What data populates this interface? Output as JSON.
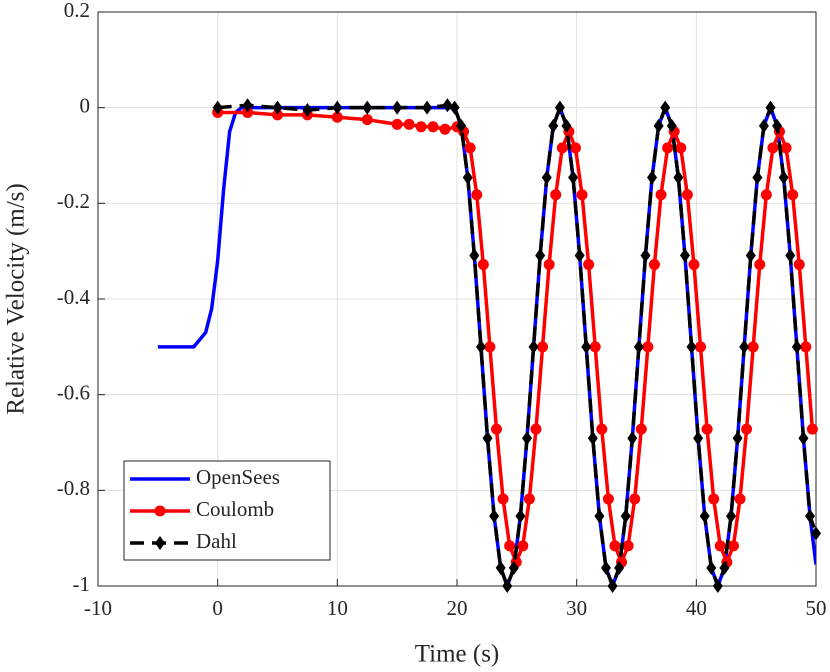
{
  "chart_data": {
    "type": "line",
    "xlabel": "Time (s)",
    "ylabel": "Relative Velocity (m/s)",
    "xlim": [
      -10,
      50
    ],
    "xticks": [
      -10,
      0,
      10,
      20,
      30,
      40,
      50
    ],
    "ylim": [
      -1,
      0.2
    ],
    "yticks": [
      0.2,
      0,
      -0.2,
      -0.4,
      -0.6,
      -0.8,
      -1
    ],
    "grid": true,
    "legend": "lower left",
    "series": [
      {
        "name": "OpenSees",
        "color": "#0000ff",
        "marker": "none",
        "dash": "solid",
        "x": [
          -5,
          -2,
          -1,
          -0.5,
          0,
          0.5,
          1,
          1.5,
          2,
          19.8,
          20.35,
          20.9,
          21.45,
          22,
          22.55,
          23.1,
          23.65,
          24.2,
          24.75,
          25.3,
          25.85,
          26.4,
          26.95,
          27.5,
          28.05,
          28.6,
          29.15,
          29.7,
          30.25,
          30.8,
          31.35,
          31.9,
          32.45,
          33,
          33.55,
          34.1,
          34.65,
          35.2,
          35.75,
          36.3,
          36.85,
          37.4,
          37.95,
          38.5,
          39.05,
          39.6,
          40.15,
          40.7,
          41.25,
          41.8,
          42.35,
          42.9,
          43.45,
          44,
          44.55,
          45.1,
          45.65,
          46.2,
          46.75,
          47.3,
          47.85,
          48.4,
          48.95,
          49.5,
          50
        ],
        "values": [
          -0.5,
          -0.5,
          -0.47,
          -0.42,
          -0.32,
          -0.17,
          -0.05,
          -0.01,
          0,
          0,
          -0.038,
          -0.146,
          -0.309,
          -0.5,
          -0.691,
          -0.854,
          -0.962,
          -1,
          -0.962,
          -0.854,
          -0.691,
          -0.5,
          -0.309,
          -0.146,
          -0.038,
          0,
          -0.038,
          -0.146,
          -0.309,
          -0.5,
          -0.691,
          -0.854,
          -0.962,
          -1,
          -0.962,
          -0.854,
          -0.691,
          -0.5,
          -0.309,
          -0.146,
          -0.038,
          0,
          -0.038,
          -0.146,
          -0.309,
          -0.5,
          -0.691,
          -0.854,
          -0.962,
          -1,
          -0.962,
          -0.854,
          -0.691,
          -0.5,
          -0.309,
          -0.146,
          -0.038,
          0,
          -0.038,
          -0.146,
          -0.309,
          -0.5,
          -0.691,
          -0.854,
          -0.955
        ]
      },
      {
        "name": "Coulomb",
        "color": "#ff0000",
        "marker": "circle",
        "dash": "solid",
        "x": [
          0,
          2.5,
          5,
          7.5,
          10,
          12.5,
          15,
          16,
          17,
          18,
          19,
          20,
          20.55,
          21.1,
          21.65,
          22.2,
          22.75,
          23.3,
          23.85,
          24.4,
          24.95,
          25.5,
          26.05,
          26.6,
          27.15,
          27.7,
          28.25,
          28.8,
          29.35,
          29.9,
          30.45,
          31,
          31.55,
          32.1,
          32.65,
          33.2,
          33.75,
          34.3,
          34.85,
          35.4,
          35.95,
          36.5,
          37.05,
          37.6,
          38.15,
          38.7,
          39.25,
          39.8,
          40.35,
          40.9,
          41.45,
          42,
          42.55,
          43.1,
          43.65,
          44.2,
          44.75,
          45.3,
          45.85,
          46.4,
          46.95,
          47.5,
          48.05,
          48.6,
          49.15,
          49.7
        ],
        "values": [
          -0.01,
          -0.01,
          -0.015,
          -0.015,
          -0.02,
          -0.025,
          -0.035,
          -0.035,
          -0.04,
          -0.04,
          -0.045,
          -0.04,
          -0.05,
          -0.084,
          -0.182,
          -0.328,
          -0.5,
          -0.672,
          -0.818,
          -0.916,
          -0.95,
          -0.916,
          -0.818,
          -0.672,
          -0.5,
          -0.328,
          -0.182,
          -0.084,
          -0.05,
          -0.084,
          -0.182,
          -0.328,
          -0.5,
          -0.672,
          -0.818,
          -0.916,
          -0.95,
          -0.916,
          -0.818,
          -0.672,
          -0.5,
          -0.328,
          -0.182,
          -0.084,
          -0.05,
          -0.084,
          -0.182,
          -0.328,
          -0.5,
          -0.672,
          -0.818,
          -0.916,
          -0.95,
          -0.916,
          -0.818,
          -0.672,
          -0.5,
          -0.328,
          -0.182,
          -0.084,
          -0.05,
          -0.084,
          -0.182,
          -0.328,
          -0.5,
          -0.672
        ]
      },
      {
        "name": "Dahl",
        "color": "#000000",
        "marker": "diamond",
        "dash": "dashed",
        "x": [
          0,
          2.5,
          5,
          7.5,
          10,
          12.5,
          15,
          17.5,
          19.2,
          19.8,
          20.35,
          20.9,
          21.45,
          22,
          22.55,
          23.1,
          23.65,
          24.2,
          24.75,
          25.3,
          25.85,
          26.4,
          26.95,
          27.5,
          28.05,
          28.6,
          29.15,
          29.7,
          30.25,
          30.8,
          31.35,
          31.9,
          32.45,
          33,
          33.55,
          34.1,
          34.65,
          35.2,
          35.75,
          36.3,
          36.85,
          37.4,
          37.95,
          38.5,
          39.05,
          39.6,
          40.15,
          40.7,
          41.25,
          41.8,
          42.35,
          42.9,
          43.45,
          44,
          44.55,
          45.1,
          45.65,
          46.2,
          46.75,
          47.3,
          47.85,
          48.4,
          48.95,
          49.5,
          50
        ],
        "values": [
          0,
          0.005,
          0,
          -0.005,
          0,
          0,
          0,
          0,
          0.005,
          0,
          -0.038,
          -0.146,
          -0.309,
          -0.5,
          -0.691,
          -0.854,
          -0.962,
          -1,
          -0.962,
          -0.854,
          -0.691,
          -0.5,
          -0.309,
          -0.146,
          -0.038,
          0,
          -0.038,
          -0.146,
          -0.309,
          -0.5,
          -0.691,
          -0.854,
          -0.962,
          -1,
          -0.962,
          -0.854,
          -0.691,
          -0.5,
          -0.309,
          -0.146,
          -0.038,
          0,
          -0.038,
          -0.146,
          -0.309,
          -0.5,
          -0.691,
          -0.854,
          -0.962,
          -1,
          -0.962,
          -0.854,
          -0.691,
          -0.5,
          -0.309,
          -0.146,
          -0.038,
          0,
          -0.038,
          -0.146,
          -0.309,
          -0.5,
          -0.691,
          -0.854,
          -0.89
        ]
      }
    ]
  }
}
